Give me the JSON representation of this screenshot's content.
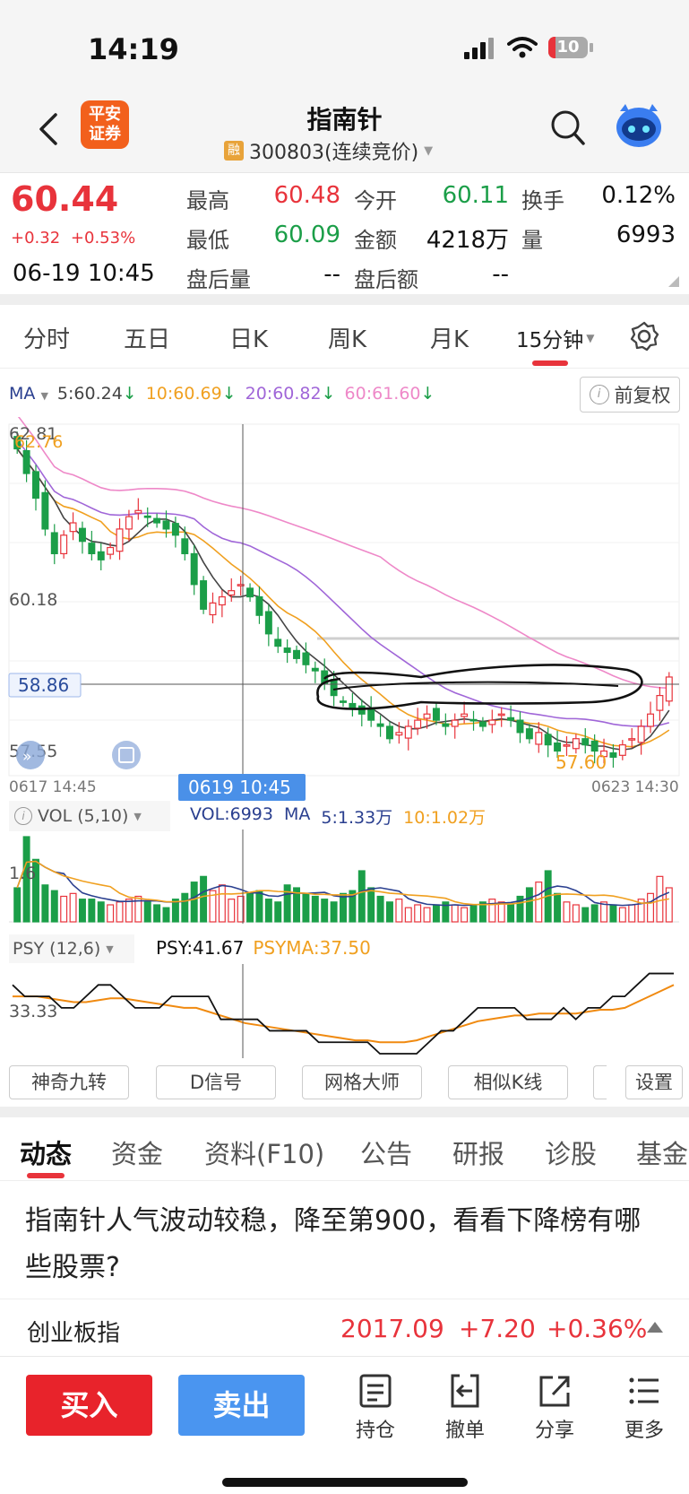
{
  "status_bar": {
    "time": "14:19",
    "battery": "10"
  },
  "header": {
    "logo_line1": "平安",
    "logo_line2": "证券",
    "title": "指南针",
    "badge": "融",
    "code": "300803(连续竞价)"
  },
  "quote": {
    "price": "60.44",
    "change": "+0.32",
    "change_pct": "+0.53%",
    "datetime": "06-19 10:45",
    "fields": [
      {
        "label": "最高",
        "value": "60.48",
        "color": "red"
      },
      {
        "label": "今开",
        "value": "60.11",
        "color": "green"
      },
      {
        "label": "换手",
        "value": "0.12%",
        "color": "black"
      },
      {
        "label": "最低",
        "value": "60.09",
        "color": "green"
      },
      {
        "label": "金额",
        "value": "4218万",
        "color": "black"
      },
      {
        "label": "量",
        "value": "6993",
        "color": "black"
      },
      {
        "label": "盘后量",
        "value": "--",
        "color": "black"
      },
      {
        "label": "盘后额",
        "value": "--",
        "color": "black"
      }
    ]
  },
  "period_tabs": [
    "分时",
    "五日",
    "日K",
    "周K",
    "月K",
    "15分钟"
  ],
  "ma_bar": {
    "label": "MA",
    "ma5": "5:60.24",
    "ma10": "10:60.69",
    "ma20": "20:60.82",
    "ma60": "60:61.60",
    "adjust": "前复权"
  },
  "kline": {
    "y_labels": [
      "62.81",
      "62.76",
      "60.18",
      "58.86",
      "57.55",
      "57.60"
    ],
    "x_start": "0617 14:45",
    "x_cursor": "0619 10:45",
    "x_end": "0623 14:30"
  },
  "vol_bar": {
    "label": "VOL (5,10)",
    "vol": "VOL:6993",
    "ma": "MA",
    "ma5": "5:1.33万",
    "ma10": "10:1.02万",
    "axis": "1.6"
  },
  "psy_bar": {
    "label": "PSY (12,6)",
    "psy": "PSY:41.67",
    "psyma": "PSYMA:37.50",
    "axis": "33.33"
  },
  "tools": [
    "神奇九转",
    "D信号",
    "网格大师",
    "相似K线",
    "设置"
  ],
  "sub_tabs": [
    "动态",
    "资金",
    "资料(F10)",
    "公告",
    "研报",
    "诊股",
    "基金"
  ],
  "news": {
    "text": "指南针人气波动较稳，降至第900，看看下降榜有哪些股票?"
  },
  "index_bar": {
    "name": "创业板指",
    "value": "2017.09",
    "change": "+7.20",
    "pct": "+0.36%"
  },
  "bottom": {
    "buy": "买入",
    "sell": "卖出",
    "items": [
      "持仓",
      "撤单",
      "分享",
      "更多"
    ]
  },
  "colors": {
    "up": "#e8333b",
    "down": "#1b9e48",
    "ma5": "#444444",
    "ma10": "#f0a020",
    "ma20": "#a066d8",
    "ma60": "#ee88c8",
    "accent": "#4a90e8"
  },
  "chart_data": {
    "type": "candlestick",
    "ma_labels": [
      "5:60.24",
      "10:60.69",
      "20:60.82",
      "60:61.60"
    ],
    "price_labels": [
      "62.81",
      "62.76",
      "60.18",
      "58.86",
      "57.55",
      "57.60"
    ],
    "x_labels": [
      "0617 14:45",
      "0619 10:45",
      "0623 14:30"
    ],
    "ylim": [
      57.3,
      63.0
    ],
    "closes": [
      62.6,
      62.2,
      61.8,
      61.3,
      60.9,
      61.2,
      61.4,
      61.1,
      60.9,
      60.8,
      61.0,
      61.3,
      61.5,
      61.6,
      61.5,
      61.4,
      61.3,
      61.2,
      60.9,
      60.4,
      60.0,
      60.1,
      60.2,
      60.3,
      60.4,
      60.2,
      59.9,
      59.6,
      59.4,
      59.3,
      59.2,
      59.1,
      59.0,
      58.8,
      58.6,
      58.5,
      58.4,
      58.3,
      58.2,
      58.1,
      57.9,
      58.0,
      58.1,
      58.2,
      58.3,
      58.2,
      58.1,
      58.2,
      58.3,
      58.2,
      58.1,
      58.2,
      58.3,
      58.2,
      58.0,
      57.9,
      58.0,
      57.8,
      57.7,
      57.8,
      57.9,
      57.8,
      57.7,
      57.7,
      57.6,
      57.8,
      57.9,
      58.1,
      58.3,
      58.6,
      58.9
    ],
    "volumes": [
      1.2,
      3.0,
      2.2,
      1.3,
      1.1,
      0.9,
      1.0,
      0.8,
      0.8,
      0.7,
      0.6,
      0.7,
      0.8,
      0.9,
      0.7,
      0.6,
      0.5,
      0.8,
      1.0,
      1.4,
      1.6,
      1.1,
      1.3,
      0.8,
      0.9,
      1.0,
      1.1,
      0.8,
      0.7,
      1.3,
      1.2,
      1.0,
      0.9,
      0.8,
      0.7,
      1.0,
      1.1,
      1.8,
      1.2,
      0.9,
      0.7,
      0.8,
      0.5,
      0.6,
      0.5,
      0.6,
      0.7,
      0.6,
      0.5,
      0.6,
      0.7,
      0.8,
      0.7,
      0.6,
      0.9,
      1.2,
      1.4,
      1.8,
      1.0,
      0.7,
      0.6,
      0.5,
      0.6,
      0.7,
      0.6,
      0.5,
      0.6,
      0.8,
      1.0,
      1.6,
      1.2
    ],
    "psy": [
      50,
      41.67,
      41.67,
      41.67,
      33.33,
      33.33,
      41.67,
      50,
      50,
      41.67,
      33.33,
      33.33,
      33.33,
      41.67,
      41.67,
      41.67,
      41.67,
      25,
      25,
      25,
      25,
      16.67,
      16.67,
      16.67,
      16.67,
      8.33,
      8.33,
      8.33,
      8.33,
      8.33,
      0,
      0,
      0,
      0,
      8.33,
      16.67,
      16.67,
      25,
      33.33,
      33.33,
      33.33,
      33.33,
      25,
      25,
      25,
      33.33,
      25,
      33.33,
      33.33,
      41.67,
      41.67,
      50,
      58.33,
      58.33,
      58.33
    ],
    "psyma": [
      41.67,
      41.67,
      41.67,
      40.28,
      38.89,
      37.5,
      37.5,
      38.89,
      40.28,
      40.28,
      38.89,
      37.5,
      36.11,
      34.72,
      33.33,
      33.33,
      30.56,
      27.78,
      25,
      22.22,
      20.83,
      19.44,
      18.06,
      16.67,
      15.28,
      13.89,
      12.5,
      11.11,
      9.72,
      9.72,
      8.33,
      8.33,
      8.33,
      9.72,
      12.5,
      15.28,
      18.06,
      20.83,
      23.61,
      25,
      26.39,
      27.78,
      27.78,
      29.17,
      29.17,
      29.17,
      29.17,
      30.56,
      31.94,
      31.94,
      33.33,
      37.5,
      41.67,
      45.83,
      50
    ]
  }
}
